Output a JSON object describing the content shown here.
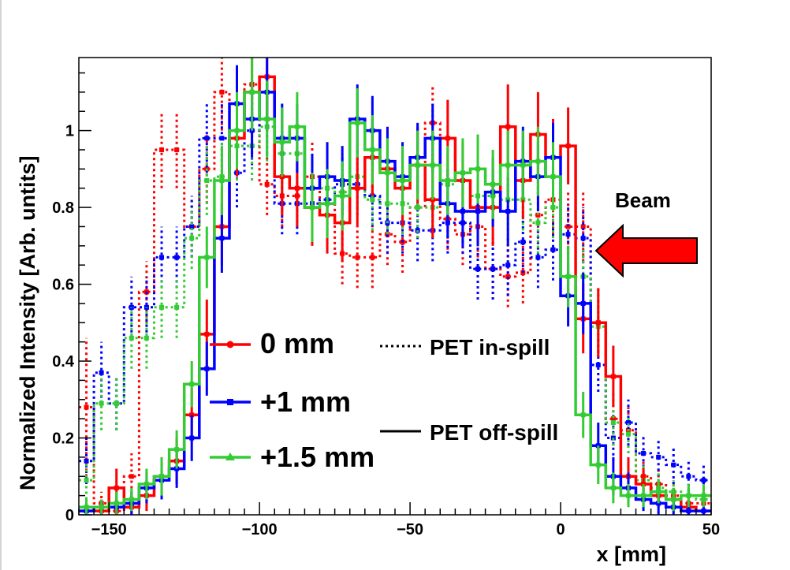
{
  "chart_data": {
    "type": "line",
    "style": "step histogram with error bars",
    "xlabel": "x [mm]",
    "ylabel": "Normalized Intensity [Arb. untits]",
    "xlim": [
      -160,
      50
    ],
    "ylim": [
      0,
      1.19
    ],
    "x_ticks": [
      -150,
      -100,
      -50,
      0,
      50
    ],
    "x_tick_labels": [
      "−150",
      "−100",
      "−50",
      "0",
      "50"
    ],
    "y_ticks": [
      0,
      0.2,
      0.4,
      0.6,
      0.8,
      1
    ],
    "y_tick_labels": [
      "0",
      "0.2",
      "0.4",
      "0.6",
      "0.8",
      "1"
    ],
    "bin_edges": [
      -160,
      -155,
      -150,
      -145,
      -140,
      -135,
      -130,
      -125,
      -120,
      -115,
      -110,
      -105,
      -100,
      -95,
      -90,
      -85,
      -80,
      -75,
      -70,
      -65,
      -60,
      -55,
      -50,
      -45,
      -40,
      -35,
      -30,
      -25,
      -20,
      -15,
      -10,
      -5,
      0,
      5,
      10,
      15,
      20,
      25,
      30,
      35,
      40,
      45,
      50
    ],
    "series": [
      {
        "name": "0 mm",
        "mode": "PET in-spill",
        "color": "#ff0000",
        "linestyle": "dotted",
        "values": [
          0.28,
          0.03,
          0.01,
          0.1,
          0.58,
          0.95,
          0.95,
          0.75,
          0.9,
          1.1,
          1.07,
          1.12,
          0.86,
          0.83,
          0.83,
          0.88,
          0.81,
          0.68,
          0.67,
          0.67,
          0.73,
          0.71,
          0.8,
          1.02,
          0.77,
          0.73,
          0.75,
          0.64,
          0.62,
          0.63,
          0.78,
          0.82,
          0.75,
          0.75,
          0.5,
          0.25,
          0.22,
          0.1,
          0.08,
          0.05,
          0.03,
          0.03
        ],
        "errors": [
          0.18,
          0.03,
          0.02,
          0.06,
          0.08,
          0.1,
          0.1,
          0.08,
          0.09,
          0.1,
          0.1,
          0.11,
          0.08,
          0.08,
          0.08,
          0.09,
          0.08,
          0.08,
          0.08,
          0.08,
          0.08,
          0.08,
          0.08,
          0.1,
          0.08,
          0.08,
          0.08,
          0.08,
          0.08,
          0.08,
          0.09,
          0.09,
          0.09,
          0.09,
          0.09,
          0.07,
          0.06,
          0.04,
          0.04,
          0.03,
          0.03,
          0.03
        ]
      },
      {
        "name": "+1 mm",
        "mode": "PET in-spill",
        "color": "#0000ff",
        "linestyle": "dotted",
        "values": [
          0.14,
          0.37,
          0.29,
          0.54,
          0.54,
          0.67,
          0.67,
          0.75,
          0.98,
          0.98,
          0.89,
          1.0,
          1.03,
          0.81,
          0.81,
          0.81,
          0.82,
          0.86,
          0.86,
          0.83,
          0.76,
          0.76,
          0.74,
          0.74,
          0.76,
          0.76,
          0.64,
          0.64,
          0.65,
          0.71,
          0.67,
          0.69,
          0.73,
          0.72,
          0.39,
          0.2,
          0.24,
          0.16,
          0.15,
          0.13,
          0.1,
          0.09
        ],
        "errors": [
          0.06,
          0.08,
          0.07,
          0.08,
          0.08,
          0.08,
          0.08,
          0.08,
          0.09,
          0.09,
          0.09,
          0.09,
          0.09,
          0.08,
          0.08,
          0.08,
          0.08,
          0.08,
          0.08,
          0.08,
          0.08,
          0.08,
          0.08,
          0.08,
          0.08,
          0.08,
          0.08,
          0.08,
          0.08,
          0.08,
          0.08,
          0.08,
          0.08,
          0.08,
          0.07,
          0.06,
          0.06,
          0.05,
          0.05,
          0.05,
          0.04,
          0.04
        ]
      },
      {
        "name": "+1.5 mm",
        "mode": "PET in-spill",
        "color": "#33cc33",
        "linestyle": "dotted",
        "values": [
          0.09,
          0.29,
          0.29,
          0.46,
          0.46,
          0.54,
          0.54,
          0.72,
          0.87,
          0.88,
          0.96,
          0.96,
          1.01,
          0.94,
          0.94,
          0.85,
          0.85,
          0.84,
          0.88,
          0.82,
          0.81,
          0.81,
          0.8,
          0.8,
          0.86,
          0.87,
          0.83,
          0.83,
          0.82,
          0.82,
          0.76,
          0.8,
          0.62,
          0.62,
          0.49,
          0.24,
          0.21,
          0.09,
          0.07,
          0.06,
          0.05,
          0.04
        ],
        "errors": [
          0.05,
          0.07,
          0.07,
          0.08,
          0.08,
          0.08,
          0.08,
          0.08,
          0.09,
          0.09,
          0.09,
          0.09,
          0.09,
          0.09,
          0.09,
          0.08,
          0.08,
          0.08,
          0.08,
          0.08,
          0.08,
          0.08,
          0.08,
          0.08,
          0.08,
          0.08,
          0.08,
          0.08,
          0.08,
          0.08,
          0.08,
          0.08,
          0.08,
          0.08,
          0.07,
          0.06,
          0.05,
          0.04,
          0.04,
          0.03,
          0.03,
          0.03
        ]
      },
      {
        "name": "0 mm",
        "mode": "PET off-spill",
        "color": "#ff0000",
        "linestyle": "solid",
        "values": [
          0.01,
          0.01,
          0.07,
          0.02,
          0.05,
          0.1,
          0.14,
          0.26,
          0.47,
          0.75,
          0.98,
          1.1,
          1.14,
          0.88,
          0.85,
          0.8,
          0.78,
          0.76,
          0.85,
          0.93,
          0.9,
          0.85,
          0.91,
          0.82,
          0.98,
          0.87,
          0.8,
          0.8,
          1.01,
          0.87,
          0.99,
          0.93,
          0.96,
          0.51,
          0.5,
          0.36,
          0.1,
          0.08,
          0.05,
          0.04,
          0.02,
          0.01
        ],
        "errors": [
          0.02,
          0.02,
          0.05,
          0.03,
          0.04,
          0.05,
          0.06,
          0.07,
          0.09,
          0.1,
          0.1,
          0.11,
          0.11,
          0.1,
          0.1,
          0.1,
          0.1,
          0.1,
          0.1,
          0.1,
          0.1,
          0.1,
          0.1,
          0.1,
          0.1,
          0.1,
          0.1,
          0.1,
          0.11,
          0.1,
          0.11,
          0.1,
          0.1,
          0.09,
          0.09,
          0.08,
          0.05,
          0.04,
          0.03,
          0.03,
          0.02,
          0.02
        ]
      },
      {
        "name": "+1 mm",
        "mode": "PET off-spill",
        "color": "#0000ff",
        "linestyle": "solid",
        "values": [
          0.01,
          0.02,
          0.02,
          0.03,
          0.07,
          0.09,
          0.12,
          0.2,
          0.38,
          0.72,
          1.07,
          1.03,
          1.1,
          0.98,
          0.98,
          0.85,
          0.88,
          0.87,
          1.03,
          1.0,
          0.92,
          0.88,
          0.93,
          0.98,
          0.81,
          0.79,
          0.79,
          0.84,
          0.79,
          0.92,
          0.88,
          0.93,
          0.57,
          0.55,
          0.18,
          0.1,
          0.07,
          0.04,
          0.03,
          0.02,
          0.01,
          0.01
        ],
        "errors": [
          0.02,
          0.02,
          0.02,
          0.03,
          0.04,
          0.05,
          0.05,
          0.06,
          0.07,
          0.09,
          0.1,
          0.1,
          0.1,
          0.09,
          0.09,
          0.09,
          0.09,
          0.09,
          0.09,
          0.09,
          0.09,
          0.09,
          0.09,
          0.09,
          0.09,
          0.09,
          0.09,
          0.09,
          0.09,
          0.09,
          0.09,
          0.09,
          0.08,
          0.08,
          0.06,
          0.05,
          0.04,
          0.03,
          0.03,
          0.02,
          0.02,
          0.02
        ]
      },
      {
        "name": "+1.5 mm",
        "mode": "PET off-spill",
        "color": "#33cc33",
        "linestyle": "solid",
        "values": [
          0.02,
          0.02,
          0.03,
          0.04,
          0.08,
          0.1,
          0.17,
          0.34,
          0.67,
          0.87,
          1.0,
          1.1,
          1.03,
          0.97,
          1.01,
          0.8,
          0.81,
          0.83,
          1.02,
          0.95,
          0.89,
          0.87,
          0.91,
          0.91,
          0.87,
          0.89,
          0.9,
          0.86,
          0.91,
          0.91,
          0.92,
          0.88,
          0.62,
          0.26,
          0.13,
          0.07,
          0.05,
          0.05,
          0.06,
          0.04,
          0.05,
          0.05
        ],
        "errors": [
          0.02,
          0.02,
          0.03,
          0.03,
          0.04,
          0.05,
          0.05,
          0.06,
          0.08,
          0.09,
          0.1,
          0.1,
          0.1,
          0.09,
          0.09,
          0.09,
          0.09,
          0.09,
          0.09,
          0.09,
          0.09,
          0.09,
          0.09,
          0.09,
          0.09,
          0.09,
          0.09,
          0.09,
          0.09,
          0.09,
          0.09,
          0.09,
          0.08,
          0.06,
          0.05,
          0.04,
          0.03,
          0.03,
          0.03,
          0.03,
          0.03,
          0.03
        ]
      }
    ],
    "legend": {
      "entries": [
        {
          "label": "0 mm",
          "color": "#ff0000",
          "marker": "circle"
        },
        {
          "label": "+1 mm",
          "color": "#0000ff",
          "marker": "square"
        },
        {
          "label": "+1.5 mm",
          "color": "#33cc33",
          "marker": "triangle"
        }
      ],
      "style_entries": [
        {
          "label": "PET in-spill",
          "linestyle": "dotted"
        },
        {
          "label": "PET off-spill",
          "linestyle": "solid"
        }
      ],
      "placement": "center"
    },
    "annotations": [
      {
        "text": "Beam",
        "arrow_color": "#ff0000",
        "points_to_x": 11,
        "points_to_y": 0.7
      }
    ]
  }
}
